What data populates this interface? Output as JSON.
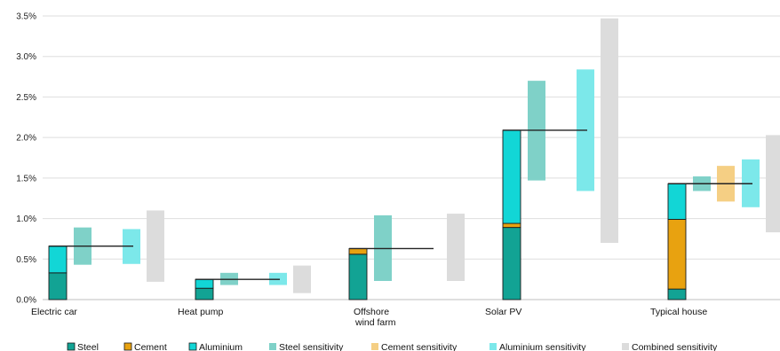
{
  "chart_data": {
    "type": "bar",
    "title": "",
    "xlabel": "",
    "ylabel": "",
    "ylim": [
      0,
      3.5
    ],
    "yticks": [
      "0.0%",
      "0.5%",
      "1.0%",
      "1.5%",
      "2.0%",
      "2.5%",
      "3.0%",
      "3.5%"
    ],
    "grid": true,
    "legend_position": "bottom",
    "colors": {
      "Steel": "#12a394",
      "Cement": "#e8a210",
      "Aluminium": "#12d6d6",
      "Steel sensitivity": "#7fd1c8",
      "Cement sensitivity": "#f5cf84",
      "Aluminium sensitivity": "#7ce8ea",
      "Combined sensitivity": "#dcdcdc",
      "total_line": "#222222"
    },
    "legend": [
      "Steel",
      "Cement",
      "Aluminium",
      "Steel sensitivity",
      "Cement sensitivity",
      "Aluminium sensitivity",
      "Combined sensitivity"
    ],
    "categories": [
      {
        "label_lines": [
          "Electric car"
        ],
        "stack": {
          "Steel": 0.33,
          "Cement": 0.0,
          "Aluminium": 0.33
        },
        "total": 0.66,
        "sensitivity": {
          "Steel sensitivity": [
            0.43,
            0.89
          ],
          "Cement sensitivity": null,
          "Aluminium sensitivity": [
            0.44,
            0.87
          ],
          "Combined sensitivity": [
            0.22,
            1.1
          ]
        }
      },
      {
        "label_lines": [
          "Heat pump"
        ],
        "stack": {
          "Steel": 0.14,
          "Cement": 0.0,
          "Aluminium": 0.11
        },
        "total": 0.25,
        "sensitivity": {
          "Steel sensitivity": [
            0.18,
            0.33
          ],
          "Cement sensitivity": null,
          "Aluminium sensitivity": [
            0.18,
            0.33
          ],
          "Combined sensitivity": [
            0.08,
            0.42
          ]
        }
      },
      {
        "label_lines": [
          "Offshore",
          "wind farm"
        ],
        "stack": {
          "Steel": 0.56,
          "Cement": 0.07,
          "Aluminium": 0.0
        },
        "total": 0.63,
        "sensitivity": {
          "Steel sensitivity": [
            0.23,
            1.04
          ],
          "Cement sensitivity": null,
          "Aluminium sensitivity": null,
          "Combined sensitivity": [
            0.23,
            1.06
          ]
        }
      },
      {
        "label_lines": [
          "Solar PV"
        ],
        "stack": {
          "Steel": 0.89,
          "Cement": 0.05,
          "Aluminium": 1.15
        },
        "total": 2.09,
        "sensitivity": {
          "Steel sensitivity": [
            1.47,
            2.7
          ],
          "Cement sensitivity": null,
          "Aluminium sensitivity": [
            1.34,
            2.84
          ],
          "Combined sensitivity": [
            0.7,
            3.47
          ]
        }
      },
      {
        "label_lines": [
          "Typical house"
        ],
        "stack": {
          "Steel": 0.13,
          "Cement": 0.86,
          "Aluminium": 0.44
        },
        "total": 1.43,
        "sensitivity": {
          "Steel sensitivity": [
            1.34,
            1.52
          ],
          "Cement sensitivity": [
            1.21,
            1.65
          ],
          "Aluminium sensitivity": [
            1.14,
            1.73
          ],
          "Combined sensitivity": [
            0.83,
            2.03
          ]
        }
      }
    ]
  }
}
